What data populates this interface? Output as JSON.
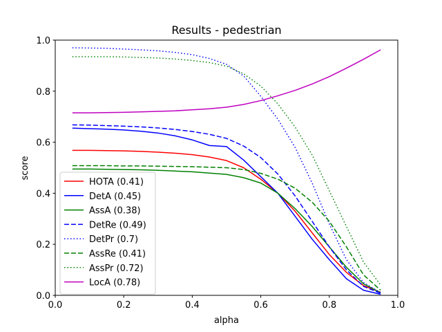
{
  "chart_data": {
    "type": "line",
    "title": "Results - pedestrian",
    "xlabel": "alpha",
    "ylabel": "score",
    "xlim": [
      0.0,
      1.0
    ],
    "ylim": [
      0.0,
      1.0
    ],
    "xticks": [
      "0.0",
      "0.2",
      "0.4",
      "0.6",
      "0.8",
      "1.0"
    ],
    "yticks": [
      "0.0",
      "0.2",
      "0.4",
      "0.6",
      "0.8",
      "1.0"
    ],
    "grid": false,
    "legend_position": "lower-left",
    "x": [
      0.05,
      0.1,
      0.15,
      0.2,
      0.25,
      0.3,
      0.35,
      0.4,
      0.45,
      0.5,
      0.55,
      0.6,
      0.65,
      0.7,
      0.75,
      0.8,
      0.85,
      0.9,
      0.95
    ],
    "series": [
      {
        "name": "HOTA (0.41)",
        "color": "#ff0000",
        "dash": "solid",
        "values": [
          0.568,
          0.568,
          0.567,
          0.566,
          0.564,
          0.561,
          0.557,
          0.551,
          0.542,
          0.528,
          0.5,
          0.455,
          0.4,
          0.33,
          0.245,
          0.16,
          0.09,
          0.038,
          0.012
        ]
      },
      {
        "name": "DetA (0.45)",
        "color": "#0000ff",
        "dash": "solid",
        "values": [
          0.655,
          0.653,
          0.651,
          0.648,
          0.643,
          0.636,
          0.625,
          0.609,
          0.587,
          0.583,
          0.53,
          0.465,
          0.4,
          0.31,
          0.22,
          0.14,
          0.065,
          0.02,
          0.004
        ]
      },
      {
        "name": "AssA (0.38)",
        "color": "#008000",
        "dash": "solid",
        "values": [
          0.495,
          0.495,
          0.494,
          0.493,
          0.492,
          0.49,
          0.487,
          0.484,
          0.479,
          0.474,
          0.461,
          0.44,
          0.4,
          0.34,
          0.27,
          0.19,
          0.11,
          0.045,
          0.01
        ]
      },
      {
        "name": "DetRe (0.49)",
        "color": "#0000ff",
        "dash": "dashed",
        "values": [
          0.668,
          0.667,
          0.665,
          0.663,
          0.66,
          0.656,
          0.65,
          0.642,
          0.631,
          0.615,
          0.585,
          0.54,
          0.475,
          0.39,
          0.29,
          0.19,
          0.1,
          0.035,
          0.008
        ]
      },
      {
        "name": "DetPr (0.7)",
        "color": "#0000ff",
        "dash": "dotted",
        "values": [
          0.97,
          0.969,
          0.968,
          0.965,
          0.962,
          0.958,
          0.952,
          0.943,
          0.928,
          0.905,
          0.86,
          0.78,
          0.69,
          0.58,
          0.44,
          0.28,
          0.14,
          0.05,
          0.01
        ]
      },
      {
        "name": "AssRe (0.41)",
        "color": "#008000",
        "dash": "dashed",
        "values": [
          0.508,
          0.508,
          0.508,
          0.507,
          0.507,
          0.506,
          0.505,
          0.504,
          0.502,
          0.5,
          0.493,
          0.478,
          0.455,
          0.42,
          0.365,
          0.29,
          0.19,
          0.08,
          0.02
        ]
      },
      {
        "name": "AssPr (0.72)",
        "color": "#008000",
        "dash": "dotted",
        "values": [
          0.935,
          0.935,
          0.935,
          0.934,
          0.932,
          0.93,
          0.926,
          0.92,
          0.912,
          0.898,
          0.868,
          0.82,
          0.75,
          0.66,
          0.55,
          0.41,
          0.27,
          0.13,
          0.04
        ]
      },
      {
        "name": "LocA (0.78)",
        "color": "#bf00bf",
        "dash": "solid",
        "values": [
          0.715,
          0.715,
          0.716,
          0.717,
          0.719,
          0.721,
          0.723,
          0.727,
          0.731,
          0.737,
          0.748,
          0.763,
          0.782,
          0.803,
          0.828,
          0.857,
          0.89,
          0.925,
          0.962
        ]
      }
    ]
  }
}
